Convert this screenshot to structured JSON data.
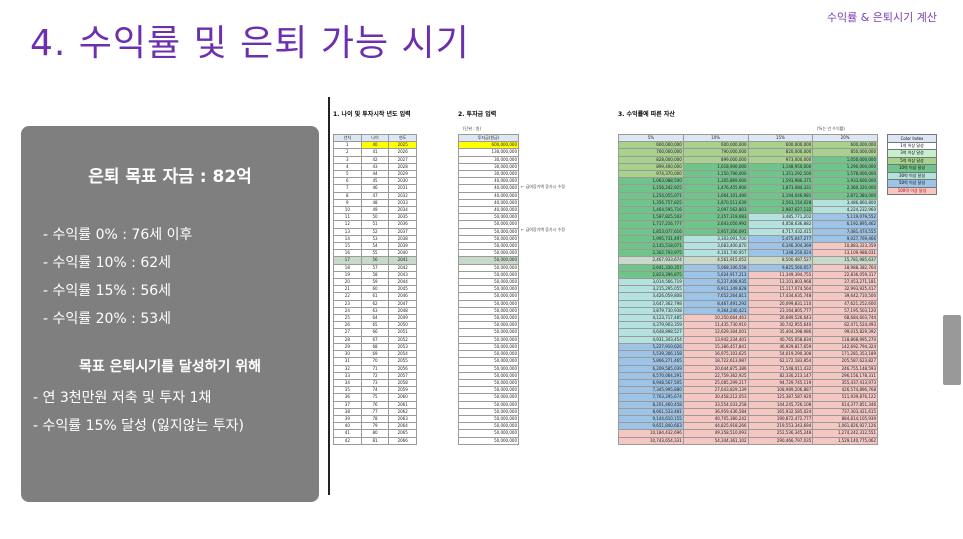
{
  "header": {
    "tag": "수익률 & 은퇴시기 계산",
    "title": "4. 수익률 및 은퇴 가능 시기"
  },
  "panel": {
    "goal": "은퇴 목표 자금 : 82억",
    "rates": [
      "- 수익률   0% : 76세 이후",
      "- 수익률 10% : 62세",
      "- 수익률 15% : 56세",
      "- 수익률 20% : 53세"
    ],
    "subtitle": "목표 은퇴시기를 달성하기 위해",
    "actions": [
      "- 연 3천만원 저축 및 투자 1채",
      "- 수익률 15% 달성 (잃지않는 투자)"
    ]
  },
  "sheet": {
    "sec1": "1. 나이 및 투자시작 년도 입력",
    "sec2": "2. 투자금 입력",
    "sec3": "3. 수익률에 따른 자산",
    "unit_left": "(단위 : 원)",
    "unit_right": "(%는 년 수익률)",
    "col_headers": [
      "년차",
      "나이",
      "연도",
      "투자금(원금)",
      "5%",
      "10%",
      "15%",
      "20%"
    ],
    "notes": [
      "← 급여증가액 증가시 수정",
      "← 급여증가액 증가시 수정"
    ],
    "legend_title": "Color Index",
    "legend": [
      "1억 이상 달성",
      "3억 이상 달성",
      "5억 이상 달성",
      "10억 이상 달성",
      "30억 이상 달성",
      "50억 이상 달성",
      "100억 이상 달성"
    ],
    "legend_colors": [
      "#ffffff",
      "#c6efce",
      "#a9d18e",
      "#70c48a",
      "#b4e2de",
      "#9dc3e6",
      "#f4c7c3"
    ],
    "rows": [
      [
        "1",
        "40",
        "2025",
        "600,000,000",
        "600,000,000",
        "600,000,000",
        "600,000,000",
        "600,000,000"
      ],
      [
        "2",
        "41",
        "2026",
        "130,000,000",
        "760,000,000",
        "790,000,000",
        "820,000,000",
        "850,000,000"
      ],
      [
        "3",
        "42",
        "2027",
        "30,000,000",
        "828,000,000",
        "899,000,000",
        "973,000,000",
        "1,050,000,000"
      ],
      [
        "4",
        "43",
        "2028",
        "30,000,000",
        "899,400,000",
        "1,018,900,000",
        "1,148,950,000",
        "1,290,000,000"
      ],
      [
        "5",
        "44",
        "2029",
        "30,000,000",
        "974,370,000",
        "1,150,790,000",
        "1,351,292,500",
        "1,578,000,000"
      ],
      [
        "6",
        "45",
        "2030",
        "40,000,000",
        "1,063,088,500",
        "1,305,869,000",
        "1,593,986,375",
        "1,933,600,000"
      ],
      [
        "7",
        "46",
        "2031",
        "40,000,000",
        "1,156,242,925",
        "1,476,455,900",
        "1,873,084,331",
        "2,360,320,000"
      ],
      [
        "8",
        "47",
        "2032",
        "40,000,000",
        "1,254,055,071",
        "1,664,101,490",
        "2,194,046,981",
        "2,872,384,000"
      ],
      [
        "9",
        "48",
        "2033",
        "40,000,000",
        "1,356,757,825",
        "1,870,511,639",
        "2,563,154,028",
        "3,486,860,800"
      ],
      [
        "10",
        "49",
        "2034",
        "40,000,000",
        "1,464,595,716",
        "2,097,562,803",
        "2,987,627,132",
        "4,224,232,960"
      ],
      [
        "11",
        "50",
        "2035",
        "50,000,000",
        "1,587,825,502",
        "2,357,319,083",
        "3,485,771,202",
        "5,119,079,552"
      ],
      [
        "12",
        "51",
        "2036",
        "50,000,000",
        "1,717,216,777",
        "2,643,050,992",
        "4,058,636,882",
        "6,192,895,462"
      ],
      [
        "13",
        "52",
        "2037",
        "50,000,000",
        "1,853,077,616",
        "2,957,356,091",
        "4,717,432,415",
        "7,481,474,555"
      ],
      [
        "14",
        "53",
        "2038",
        "50,000,000",
        "1,995,731,497",
        "3,303,091,700",
        "5,475,047,277",
        "9,027,769,466"
      ],
      [
        "15",
        "54",
        "2039",
        "50,000,000",
        "2,145,518,071",
        "3,683,400,870",
        "6,346,304,369",
        "10,883,323,359"
      ],
      [
        "16",
        "55",
        "2040",
        "50,000,000",
        "2,302,793,975",
        "4,101,740,957",
        "7,348,250,024",
        "13,109,988,031"
      ],
      [
        "17",
        "56",
        "2041",
        "50,000,000",
        "2,467,933,674",
        "4,561,915,052",
        "8,500,487,527",
        "15,781,985,637"
      ],
      [
        "18",
        "57",
        "2042",
        "50,000,000",
        "2,641,330,357",
        "5,068,106,558",
        "9,825,560,657",
        "18,988,382,764"
      ],
      [
        "19",
        "58",
        "2043",
        "50,000,000",
        "2,823,396,875",
        "5,624,917,213",
        "11,349,394,755",
        "22,836,059,317"
      ],
      [
        "20",
        "59",
        "2044",
        "50,000,000",
        "3,014,566,719",
        "6,237,408,935",
        "13,101,803,968",
        "27,453,271,181"
      ],
      [
        "21",
        "60",
        "2045",
        "50,000,000",
        "3,215,295,055",
        "6,911,149,828",
        "15,117,074,564",
        "32,993,925,417"
      ],
      [
        "22",
        "61",
        "2046",
        "50,000,000",
        "3,426,059,808",
        "7,652,264,811",
        "17,434,635,748",
        "39,642,710,500"
      ],
      [
        "23",
        "62",
        "2047",
        "50,000,000",
        "3,647,362,798",
        "8,467,491,292",
        "20,099,831,110",
        "47,621,252,600"
      ],
      [
        "24",
        "63",
        "2048",
        "50,000,000",
        "3,879,730,938",
        "9,364,240,421",
        "23,164,805,777",
        "57,195,503,120"
      ],
      [
        "25",
        "64",
        "2049",
        "50,000,000",
        "4,123,717,485",
        "10,350,664,463",
        "26,689,526,643",
        "68,684,603,744"
      ],
      [
        "26",
        "65",
        "2050",
        "50,000,000",
        "4,379,903,359",
        "11,435,730,910",
        "30,742,955,640",
        "82,471,524,493"
      ],
      [
        "27",
        "66",
        "2051",
        "50,000,000",
        "4,648,898,527",
        "12,629,304,001",
        "35,404,398,986",
        "99,015,829,392"
      ],
      [
        "28",
        "67",
        "2052",
        "50,000,000",
        "4,931,343,454",
        "13,942,234,401",
        "40,765,058,834",
        "118,868,995,270"
      ],
      [
        "29",
        "68",
        "2053",
        "50,000,000",
        "5,227,910,626",
        "15,386,457,841",
        "46,929,817,659",
        "142,692,794,324"
      ],
      [
        "30",
        "69",
        "2054",
        "50,000,000",
        "5,539,306,158",
        "16,975,103,625",
        "54,019,290,308",
        "171,281,353,189"
      ],
      [
        "31",
        "70",
        "2055",
        "50,000,000",
        "5,866,271,465",
        "18,722,613,987",
        "62,172,183,854",
        "205,587,623,827"
      ],
      [
        "32",
        "71",
        "2056",
        "50,000,000",
        "6,209,585,039",
        "20,644,875,386",
        "71,548,011,432",
        "246,755,148,593"
      ],
      [
        "33",
        "72",
        "2057",
        "50,000,000",
        "6,570,064,291",
        "22,759,362,925",
        "82,330,213,147",
        "296,156,178,311"
      ],
      [
        "34",
        "73",
        "2058",
        "50,000,000",
        "6,948,567,505",
        "25,085,299,217",
        "94,729,745,119",
        "355,437,413,973"
      ],
      [
        "35",
        "74",
        "2059",
        "50,000,000",
        "7,345,995,880",
        "27,643,829,139",
        "108,989,206,887",
        "426,574,896,768"
      ],
      [
        "36",
        "75",
        "2060",
        "50,000,000",
        "7,763,295,674",
        "30,458,212,053",
        "125,387,587,920",
        "511,939,876,122"
      ],
      [
        "37",
        "76",
        "2061",
        "50,000,000",
        "8,201,460,458",
        "33,554,033,258",
        "144,245,726,108",
        "614,377,851,346"
      ],
      [
        "38",
        "77",
        "2062",
        "50,000,000",
        "8,661,533,481",
        "36,959,436,584",
        "165,932,585,024",
        "737,303,421,615"
      ],
      [
        "39",
        "78",
        "2063",
        "50,000,000",
        "9,144,610,155",
        "40,705,380,242",
        "190,872,472,777",
        "884,814,105,939"
      ],
      [
        "40",
        "79",
        "2064",
        "50,000,000",
        "9,651,840,663",
        "44,825,918,266",
        "219,553,343,694",
        "1,061,826,927,126"
      ],
      [
        "41",
        "80",
        "2065",
        "50,000,000",
        "10,184,432,696",
        "49,358,510,093",
        "252,536,345,248",
        "1,274,242,312,551"
      ],
      [
        "42",
        "81",
        "2066",
        "50,000,000",
        "10,743,654,331",
        "54,344,361,102",
        "290,466,797,035",
        "1,529,140,775,062"
      ]
    ]
  }
}
